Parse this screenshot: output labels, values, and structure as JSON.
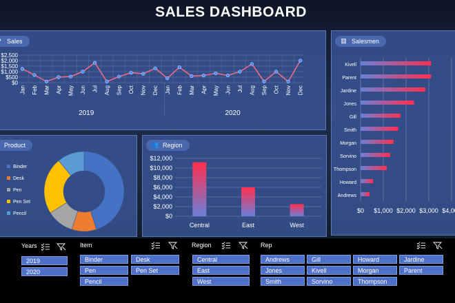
{
  "title": "SALES DASHBOARD",
  "sales": {
    "label": "Sales",
    "y_ticks": [
      "$2,500",
      "$2,000",
      "$1,500",
      "$1,000",
      "$500",
      "$0"
    ],
    "years": [
      "2019",
      "2020"
    ]
  },
  "salesmen": {
    "label": "Salesmen",
    "x_ticks": [
      "$0",
      "$1,000",
      "$2,000",
      "$3,000",
      "$4,000"
    ]
  },
  "product": {
    "label": "Product",
    "legend": [
      "Binder",
      "Desk",
      "Pen",
      "Pen Set",
      "Pencil"
    ]
  },
  "region": {
    "label": "Region",
    "y_ticks": [
      "$12,000",
      "$10,000",
      "$8,000",
      "$6,000",
      "$4,000",
      "$2,000",
      "$0"
    ]
  },
  "colors": {
    "panel": "#3a5696",
    "line": "#f06a84",
    "marker": "#4b8bff",
    "bar_gradient_start": "#6b7fd8",
    "bar_gradient_end": "#ff2f4f",
    "donut": [
      "#4472c4",
      "#ed7d31",
      "#a5a5a5",
      "#ffc000",
      "#5b9bd5"
    ],
    "slicer_button": "#4e70c9"
  },
  "slicers": {
    "years": {
      "title": "Years",
      "items": [
        "2019",
        "2020"
      ]
    },
    "item": {
      "title": "Item",
      "items": [
        "Binder",
        "Desk",
        "Pen",
        "Pen Set",
        "Pencil"
      ]
    },
    "region": {
      "title": "Region",
      "items": [
        "Central",
        "East",
        "West"
      ]
    },
    "rep": {
      "title": "Rep",
      "items": [
        "Andrews",
        "Gill",
        "Howard",
        "Jardine",
        "Jones",
        "Kivell",
        "Morgan",
        "Parent",
        "Smith",
        "Sorvino",
        "Thompson"
      ]
    }
  },
  "chart_data": [
    {
      "type": "line",
      "title": "Sales",
      "x": [
        "Jan",
        "Feb",
        "Mar",
        "Apr",
        "May",
        "Jun",
        "Jul",
        "Aug",
        "Sep",
        "Oct",
        "Nov",
        "Dec",
        "Jan",
        "Feb",
        "Mar",
        "Apr",
        "May",
        "Jun",
        "Jul",
        "Aug",
        "Sep",
        "Oct",
        "Nov",
        "Dec"
      ],
      "x_groups": [
        "2019",
        "2020"
      ],
      "values": [
        1250,
        700,
        100,
        500,
        550,
        1000,
        1800,
        100,
        550,
        900,
        800,
        1300,
        400,
        1400,
        600,
        650,
        850,
        650,
        1000,
        1700,
        100,
        1000,
        100,
        2000
      ],
      "ylim": [
        0,
        2500
      ],
      "y_ticks": [
        "$2,500",
        "$2,000",
        "$1,500",
        "$1,000",
        "$500",
        "$0"
      ]
    },
    {
      "type": "bar",
      "orientation": "horizontal",
      "title": "Salesmen",
      "categories": [
        "Kivell",
        "Parent",
        "Jardine",
        "Jones",
        "Gill",
        "Smith",
        "Morgan",
        "Sorvino",
        "Thompson",
        "Howard",
        "Andrews"
      ],
      "values": [
        3100,
        3100,
        2850,
        2350,
        1750,
        1650,
        1450,
        1300,
        1150,
        550,
        400
      ],
      "xlim": [
        0,
        4000
      ],
      "x_ticks": [
        "$0",
        "$1,000",
        "$2,000",
        "$3,000",
        "$4,000"
      ]
    },
    {
      "type": "pie",
      "style": "donut",
      "title": "Product",
      "categories": [
        "Binder",
        "Desk",
        "Pen",
        "Pen Set",
        "Pencil"
      ],
      "values": [
        45,
        10,
        11,
        23,
        11
      ]
    },
    {
      "type": "bar",
      "title": "Region",
      "categories": [
        "Central",
        "East",
        "West"
      ],
      "values": [
        11200,
        6000,
        2500
      ],
      "ylim": [
        0,
        12000
      ],
      "y_ticks": [
        "$12,000",
        "$10,000",
        "$8,000",
        "$6,000",
        "$4,000",
        "$2,000",
        "$0"
      ]
    }
  ]
}
